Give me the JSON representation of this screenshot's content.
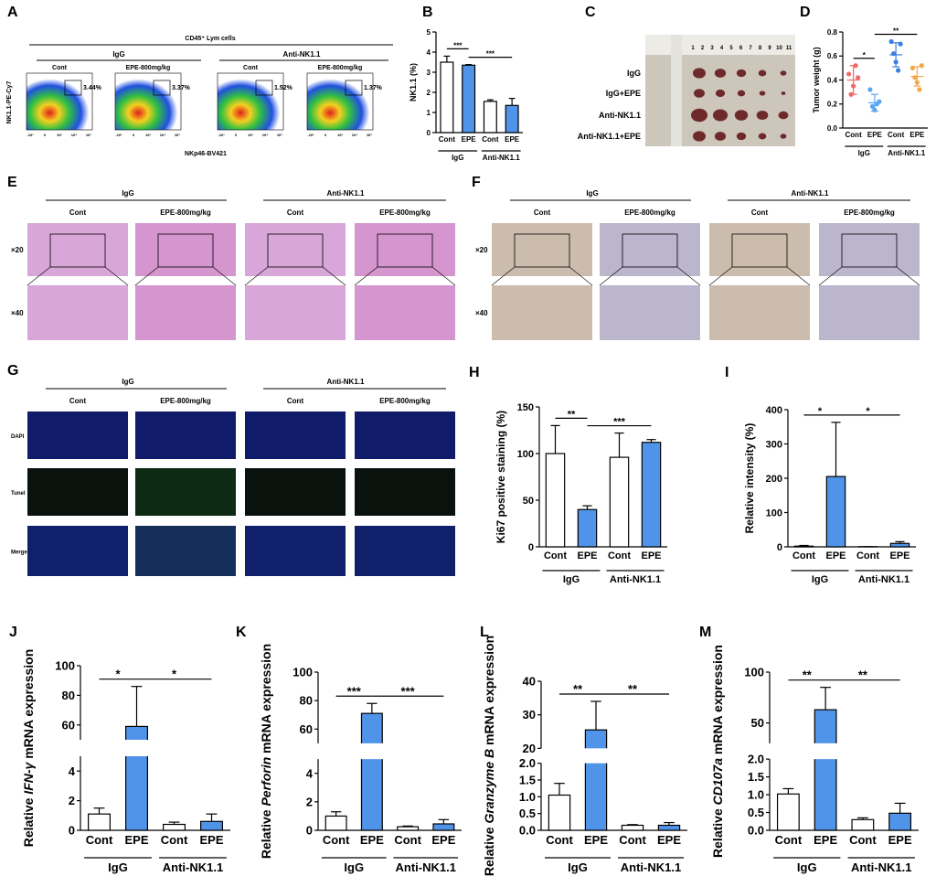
{
  "chart_data": [
    {
      "type": "bar",
      "panel": "B",
      "ylabel": "NK1.1 (%)",
      "categories": [
        "Cont",
        "EPE",
        "Cont",
        "EPE"
      ],
      "groups": [
        {
          "label": "IgG",
          "from": 0,
          "to": 1
        },
        {
          "label": "Anti-NK1.1",
          "from": 2,
          "to": 3
        }
      ],
      "values": [
        3.5,
        3.35,
        1.55,
        1.35
      ],
      "errors": [
        0.3,
        0.03,
        0.08,
        0.35
      ],
      "colors": [
        "#ffffff",
        "#4f94e8",
        "#ffffff",
        "#4f94e8"
      ],
      "ylim": [
        0,
        5
      ],
      "yticks": [
        0,
        1,
        2,
        3,
        4,
        5
      ],
      "significance": [
        {
          "label": "***",
          "from": 0,
          "to": 1
        },
        {
          "label": "***",
          "from": 1,
          "to": 3
        }
      ]
    },
    {
      "type": "dot",
      "panel": "D",
      "ylabel": "Tumor weight (g)",
      "categories": [
        "Cont",
        "EPE",
        "Cont",
        "EPE"
      ],
      "groups": [
        {
          "label": "IgG",
          "from": 0,
          "to": 1
        },
        {
          "label": "Anti-NK1.1",
          "from": 2,
          "to": 3
        }
      ],
      "points": [
        [
          0.45,
          0.28,
          0.35,
          0.52,
          0.42
        ],
        [
          0.32,
          0.18,
          0.15,
          0.2,
          0.22
        ],
        [
          0.72,
          0.62,
          0.55,
          0.48,
          0.7
        ],
        [
          0.5,
          0.42,
          0.38,
          0.32,
          0.52
        ]
      ],
      "means": [
        0.4,
        0.21,
        0.61,
        0.43
      ],
      "sds": [
        0.12,
        0.07,
        0.1,
        0.08
      ],
      "colors": [
        "#f06a6a",
        "#5aa9f0",
        "#3d7fe0",
        "#f5a84a"
      ],
      "ylim": [
        0,
        0.8
      ],
      "yticks": [
        {
          "value": 0,
          "label": "0.0"
        },
        0.2,
        0.4,
        0.6,
        0.8
      ],
      "significance": [
        {
          "label": "*",
          "from": 0,
          "to": 1
        },
        {
          "label": "**",
          "from": 1,
          "to": 3
        }
      ]
    },
    {
      "type": "bar",
      "panel": "H",
      "ylabel": "Ki67 positive staining (%)",
      "categories": [
        "Cont",
        "EPE",
        "Cont",
        "EPE"
      ],
      "groups": [
        {
          "label": "IgG",
          "from": 0,
          "to": 1
        },
        {
          "label": "Anti-NK1.1",
          "from": 2,
          "to": 3
        }
      ],
      "values": [
        100,
        40,
        96,
        112
      ],
      "errors": [
        30,
        4,
        26,
        3
      ],
      "colors": [
        "#ffffff",
        "#4f94e8",
        "#ffffff",
        "#4f94e8"
      ],
      "ylim": [
        0,
        150
      ],
      "yticks": [
        0,
        50,
        100,
        150
      ],
      "significance": [
        {
          "label": "**",
          "from": 0,
          "to": 1
        },
        {
          "label": "***",
          "from": 1,
          "to": 3
        }
      ]
    },
    {
      "type": "bar",
      "panel": "I",
      "ylabel": "Relative intensity (%)",
      "categories": [
        "Cont",
        "EPE",
        "Cont",
        "EPE"
      ],
      "groups": [
        {
          "label": "IgG",
          "from": 0,
          "to": 1
        },
        {
          "label": "Anti-NK1.1",
          "from": 2,
          "to": 3
        }
      ],
      "values": [
        2,
        205,
        0.5,
        10
      ],
      "errors": [
        2,
        158,
        0,
        5
      ],
      "colors": [
        "#ffffff",
        "#4f94e8",
        "#ffffff",
        "#4f94e8"
      ],
      "ylim": [
        0,
        400
      ],
      "yticks": [
        0,
        100,
        200,
        300,
        400
      ],
      "significance": [
        {
          "label": "*",
          "from": 0,
          "to": 1
        },
        {
          "label": "*",
          "from": 1,
          "to": 3
        }
      ]
    },
    {
      "type": "bar",
      "panel": "J",
      "ylabel_parts": [
        "Relative ",
        "IFN-γ",
        " mRNA expression"
      ],
      "categories": [
        "Cont",
        "EPE",
        "Cont",
        "EPE"
      ],
      "groups": [
        {
          "label": "IgG",
          "from": 0,
          "to": 1
        },
        {
          "label": "Anti-NK1.1",
          "from": 2,
          "to": 3
        }
      ],
      "values": [
        1.1,
        59,
        0.4,
        0.6
      ],
      "errors": [
        0.4,
        27,
        0.15,
        0.5
      ],
      "colors": [
        "#ffffff",
        "#4f94e8",
        "#ffffff",
        "#4f94e8"
      ],
      "segments": [
        {
          "ylim": [
            0,
            5
          ],
          "yticks": [
            0,
            2,
            4
          ]
        },
        {
          "ylim": [
            50,
            100
          ],
          "yticks": [
            60,
            80,
            100
          ]
        }
      ],
      "significance": [
        {
          "label": "*",
          "from": 0,
          "to": 1
        },
        {
          "label": "*",
          "from": 1,
          "to": 3
        }
      ]
    },
    {
      "type": "bar",
      "panel": "K",
      "ylabel_parts": [
        "Relative ",
        "Perforin",
        " mRNA expression"
      ],
      "categories": [
        "Cont",
        "EPE",
        "Cont",
        "EPE"
      ],
      "groups": [
        {
          "label": "IgG",
          "from": 0,
          "to": 1
        },
        {
          "label": "Anti-NK1.1",
          "from": 2,
          "to": 3
        }
      ],
      "values": [
        1.0,
        71,
        0.25,
        0.45
      ],
      "errors": [
        0.3,
        7,
        0.05,
        0.3
      ],
      "colors": [
        "#ffffff",
        "#4f94e8",
        "#ffffff",
        "#4f94e8"
      ],
      "segments": [
        {
          "ylim": [
            0,
            5
          ],
          "yticks": [
            0,
            2,
            4
          ]
        },
        {
          "ylim": [
            50,
            100
          ],
          "yticks": [
            60,
            80,
            100
          ]
        }
      ],
      "significance": [
        {
          "label": "***",
          "from": 0,
          "to": 1
        },
        {
          "label": "***",
          "from": 1,
          "to": 3
        }
      ]
    },
    {
      "type": "bar",
      "panel": "L",
      "ylabel_parts": [
        "Relative ",
        "Granzyme B",
        " mRNA expression"
      ],
      "categories": [
        "Cont",
        "EPE",
        "Cont",
        "EPE"
      ],
      "groups": [
        {
          "label": "IgG",
          "from": 0,
          "to": 1
        },
        {
          "label": "Anti-NK1.1",
          "from": 2,
          "to": 3
        }
      ],
      "values": [
        1.05,
        25.5,
        0.15,
        0.15
      ],
      "errors": [
        0.35,
        8.5,
        0.02,
        0.08
      ],
      "colors": [
        "#ffffff",
        "#4f94e8",
        "#ffffff",
        "#4f94e8"
      ],
      "segments": [
        {
          "ylim": [
            0,
            2
          ],
          "yticks": [
            {
              "value": 0,
              "label": "0.0"
            },
            0.5,
            {
              "value": 1,
              "label": "1.0"
            },
            1.5,
            {
              "value": 2,
              "label": "2.0"
            }
          ]
        },
        {
          "ylim": [
            20,
            40
          ],
          "yticks": [
            20,
            30,
            40
          ]
        }
      ],
      "significance": [
        {
          "label": "**",
          "from": 0,
          "to": 1
        },
        {
          "label": "**",
          "from": 1,
          "to": 3
        }
      ]
    },
    {
      "type": "bar",
      "panel": "M",
      "ylabel_parts": [
        "Relative ",
        "CD107a",
        " mRNA expression"
      ],
      "categories": [
        "Cont",
        "EPE",
        "Cont",
        "EPE"
      ],
      "groups": [
        {
          "label": "IgG",
          "from": 0,
          "to": 1
        },
        {
          "label": "Anti-NK1.1",
          "from": 2,
          "to": 3
        }
      ],
      "values": [
        1.02,
        63,
        0.3,
        0.48
      ],
      "errors": [
        0.15,
        22,
        0.05,
        0.28
      ],
      "colors": [
        "#ffffff",
        "#4f94e8",
        "#ffffff",
        "#4f94e8"
      ],
      "segments": [
        {
          "ylim": [
            0,
            2
          ],
          "yticks": [
            {
              "value": 0,
              "label": "0.0"
            },
            0.5,
            {
              "value": 1,
              "label": "1.0"
            },
            1.5,
            {
              "value": 2,
              "label": "2.0"
            }
          ]
        },
        {
          "ylim": [
            30,
            100
          ],
          "yticks": [
            50,
            100
          ]
        }
      ],
      "significance": [
        {
          "label": "**",
          "from": 0,
          "to": 1
        },
        {
          "label": "**",
          "from": 1,
          "to": 3
        }
      ]
    }
  ],
  "figure": {
    "A": {
      "panel": "A",
      "title": "CD45⁺ Lym cells",
      "groups": [
        "IgG",
        "Anti-NK1.1"
      ],
      "columns": [
        "Cont",
        "EPE-800mg/kg",
        "Cont",
        "EPE-800mg/kg"
      ],
      "gates": [
        "3.44%",
        "3.37%",
        "1.52%",
        "1.37%"
      ],
      "ylabel": "NK1.1-PE-Cy7",
      "xlabel": "NKp46-BV421",
      "axis_ticks": [
        "-10³",
        "0",
        "10³",
        "10⁴",
        "10⁵"
      ]
    },
    "C": {
      "panel": "C",
      "rows": [
        "IgG",
        "IgG+EPE",
        "Anti-NK1.1",
        "Anti-NK1.1+EPE"
      ],
      "ruler": [
        "1",
        "2",
        "3",
        "4",
        "5",
        "6",
        "7",
        "8",
        "9",
        "10",
        "11"
      ]
    },
    "E": {
      "panel": "E",
      "groups": [
        "IgG",
        "Anti-NK1.1"
      ],
      "columns": [
        "Cont",
        "EPE-800mg/kg",
        "Cont",
        "EPE-800mg/kg"
      ],
      "rows": [
        "×20",
        "×40"
      ]
    },
    "F": {
      "panel": "F",
      "groups": [
        "IgG",
        "Anti-NK1.1"
      ],
      "columns": [
        "Cont",
        "EPE-800mg/kg",
        "Cont",
        "EPE-800mg/kg"
      ],
      "rows": [
        "×20",
        "×40"
      ]
    },
    "G": {
      "panel": "G",
      "groups": [
        "IgG",
        "Anti-NK1.1"
      ],
      "columns": [
        "Cont",
        "EPE-800mg/kg",
        "Cont",
        "EPE-800mg/kg"
      ],
      "rows": [
        "DAPI",
        "Tunel",
        "Merge"
      ]
    }
  }
}
